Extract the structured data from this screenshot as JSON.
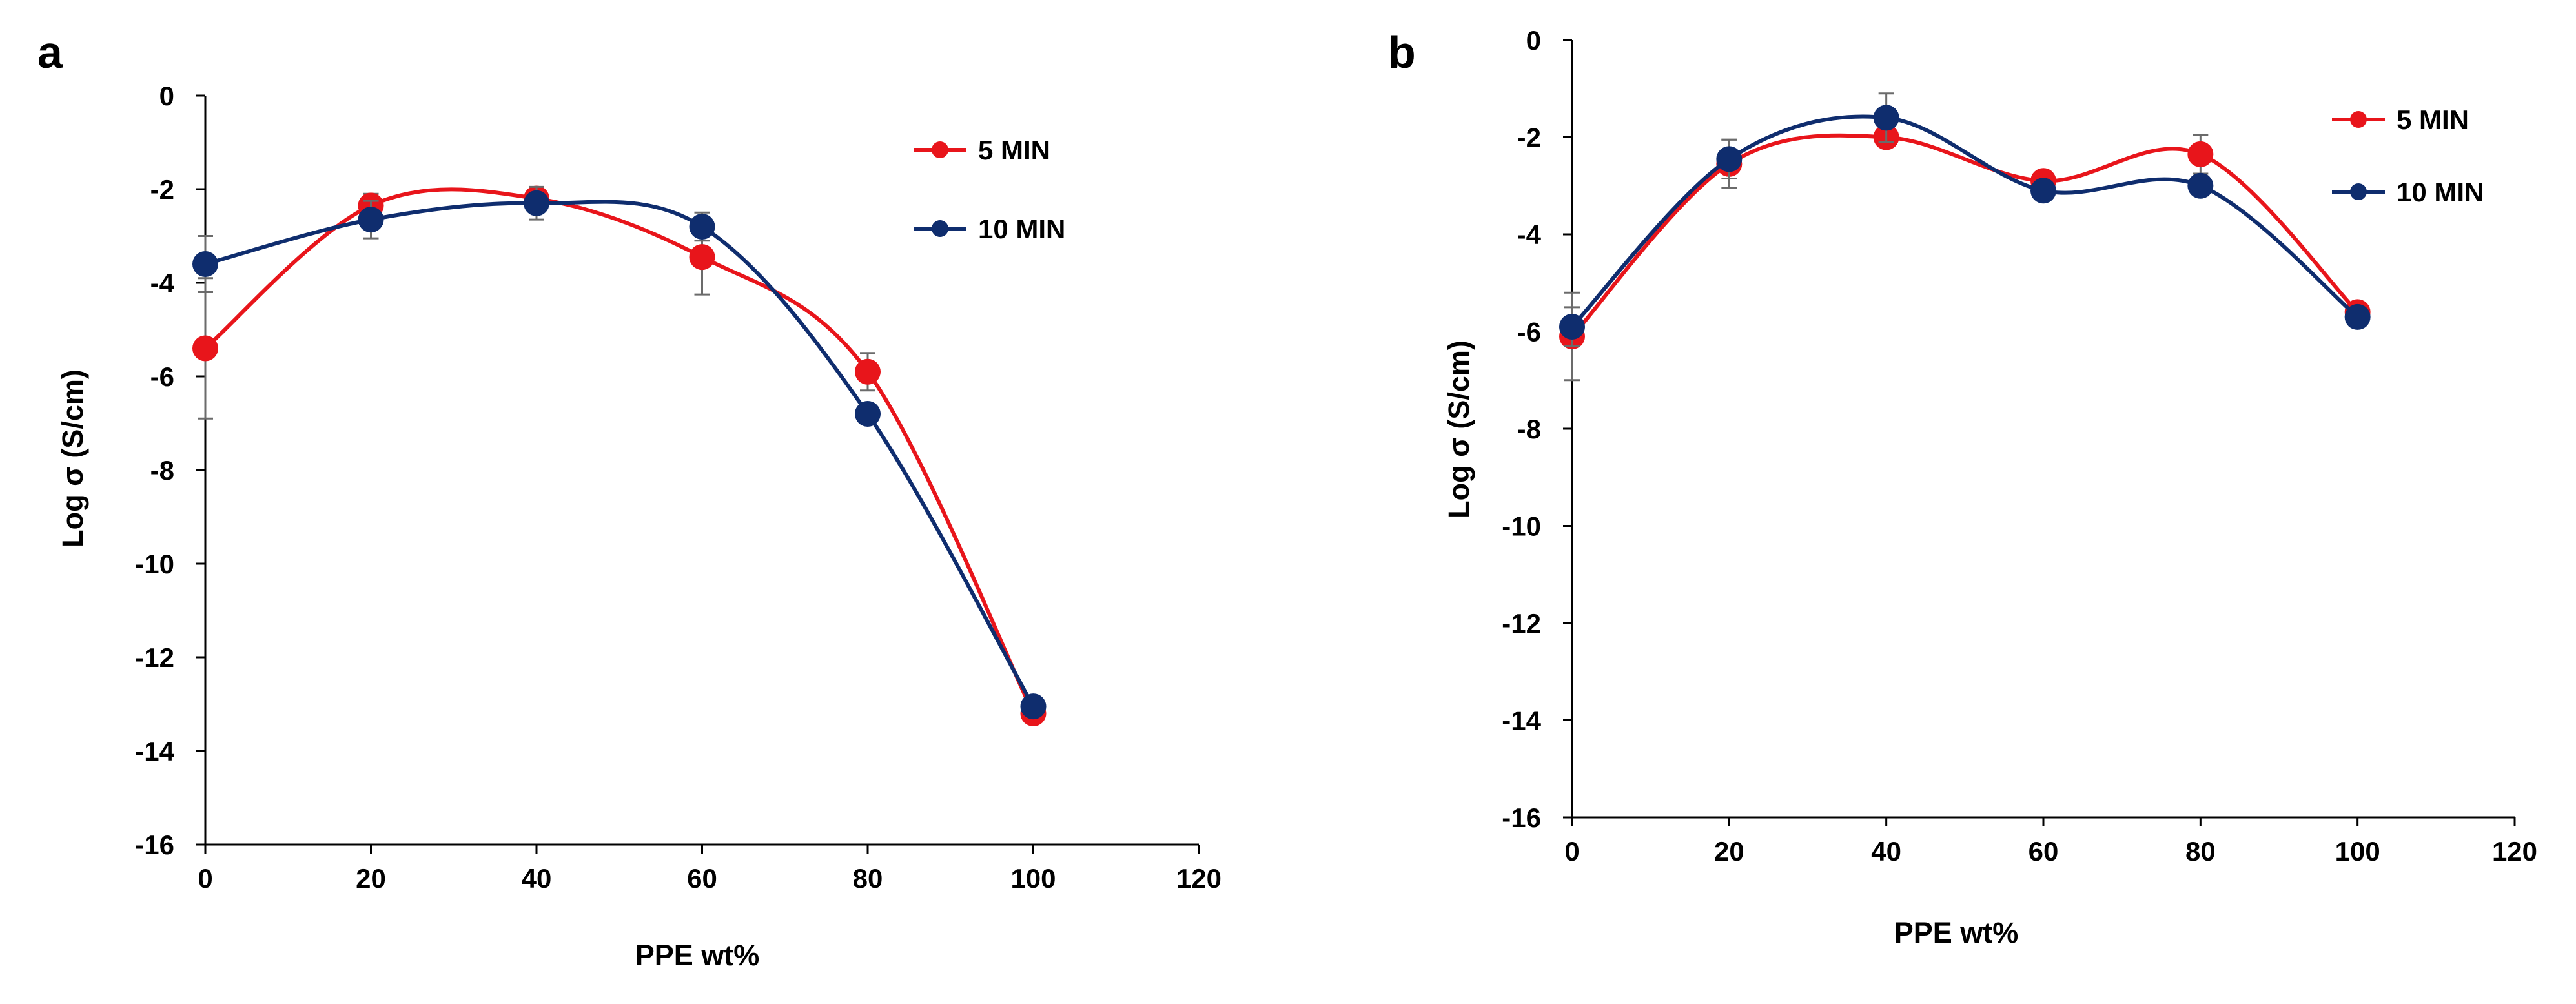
{
  "colors": {
    "red": "#e8151b",
    "navy": "#0f2d6e",
    "axis": "#000000",
    "errorbar": "#6b6b6b"
  },
  "chart_data": [
    {
      "panel_label": "a",
      "type": "line",
      "smooth": true,
      "title": "",
      "xlabel": "PPE wt%",
      "ylabel": "Log σ (S/cm)",
      "xlim": [
        0,
        120
      ],
      "ylim": [
        -16,
        0
      ],
      "xticks": [
        "0",
        "20",
        "40",
        "60",
        "80",
        "100",
        "120"
      ],
      "yticks": [
        "0",
        "-2",
        "-4",
        "-6",
        "-8",
        "-10",
        "-12",
        "-14",
        "-16"
      ],
      "legend_position": "top-right",
      "x": [
        0,
        20,
        40,
        60,
        80,
        100
      ],
      "series": [
        {
          "name": "5 MIN",
          "color": "red",
          "values": [
            -5.4,
            -2.35,
            -2.2,
            -3.45,
            -5.9,
            -13.2
          ],
          "errors": [
            1.5,
            0.25,
            0.2,
            0.8,
            0.4,
            0.1
          ]
        },
        {
          "name": "10 MIN",
          "color": "navy",
          "values": [
            -3.6,
            -2.65,
            -2.3,
            -2.8,
            -6.8,
            -13.05
          ],
          "errors": [
            0.6,
            0.4,
            0.35,
            0.3,
            0.15,
            0.1
          ]
        }
      ]
    },
    {
      "panel_label": "b",
      "type": "line",
      "smooth": true,
      "title": "",
      "xlabel": "PPE wt%",
      "ylabel": "Log σ (S/cm)",
      "xlim": [
        0,
        120
      ],
      "ylim": [
        -16,
        0
      ],
      "xticks": [
        "0",
        "20",
        "40",
        "60",
        "80",
        "100",
        "120"
      ],
      "yticks": [
        "0",
        "-2",
        "-4",
        "-6",
        "-8",
        "-10",
        "-12",
        "-14",
        "-16"
      ],
      "legend_position": "top-right",
      "x": [
        0,
        20,
        40,
        60,
        80,
        100
      ],
      "series": [
        {
          "name": "5 MIN",
          "color": "red",
          "values": [
            -6.1,
            -2.55,
            -2.0,
            -2.9,
            -2.35,
            -5.6
          ],
          "errors": [
            0.9,
            0.5,
            0.15,
            0.15,
            0.4,
            0.15
          ]
        },
        {
          "name": "10 MIN",
          "color": "navy",
          "values": [
            -5.9,
            -2.45,
            -1.6,
            -3.1,
            -3.0,
            -5.7
          ],
          "errors": [
            0.4,
            0.4,
            0.5,
            0.1,
            0.2,
            0.1
          ]
        }
      ]
    }
  ]
}
